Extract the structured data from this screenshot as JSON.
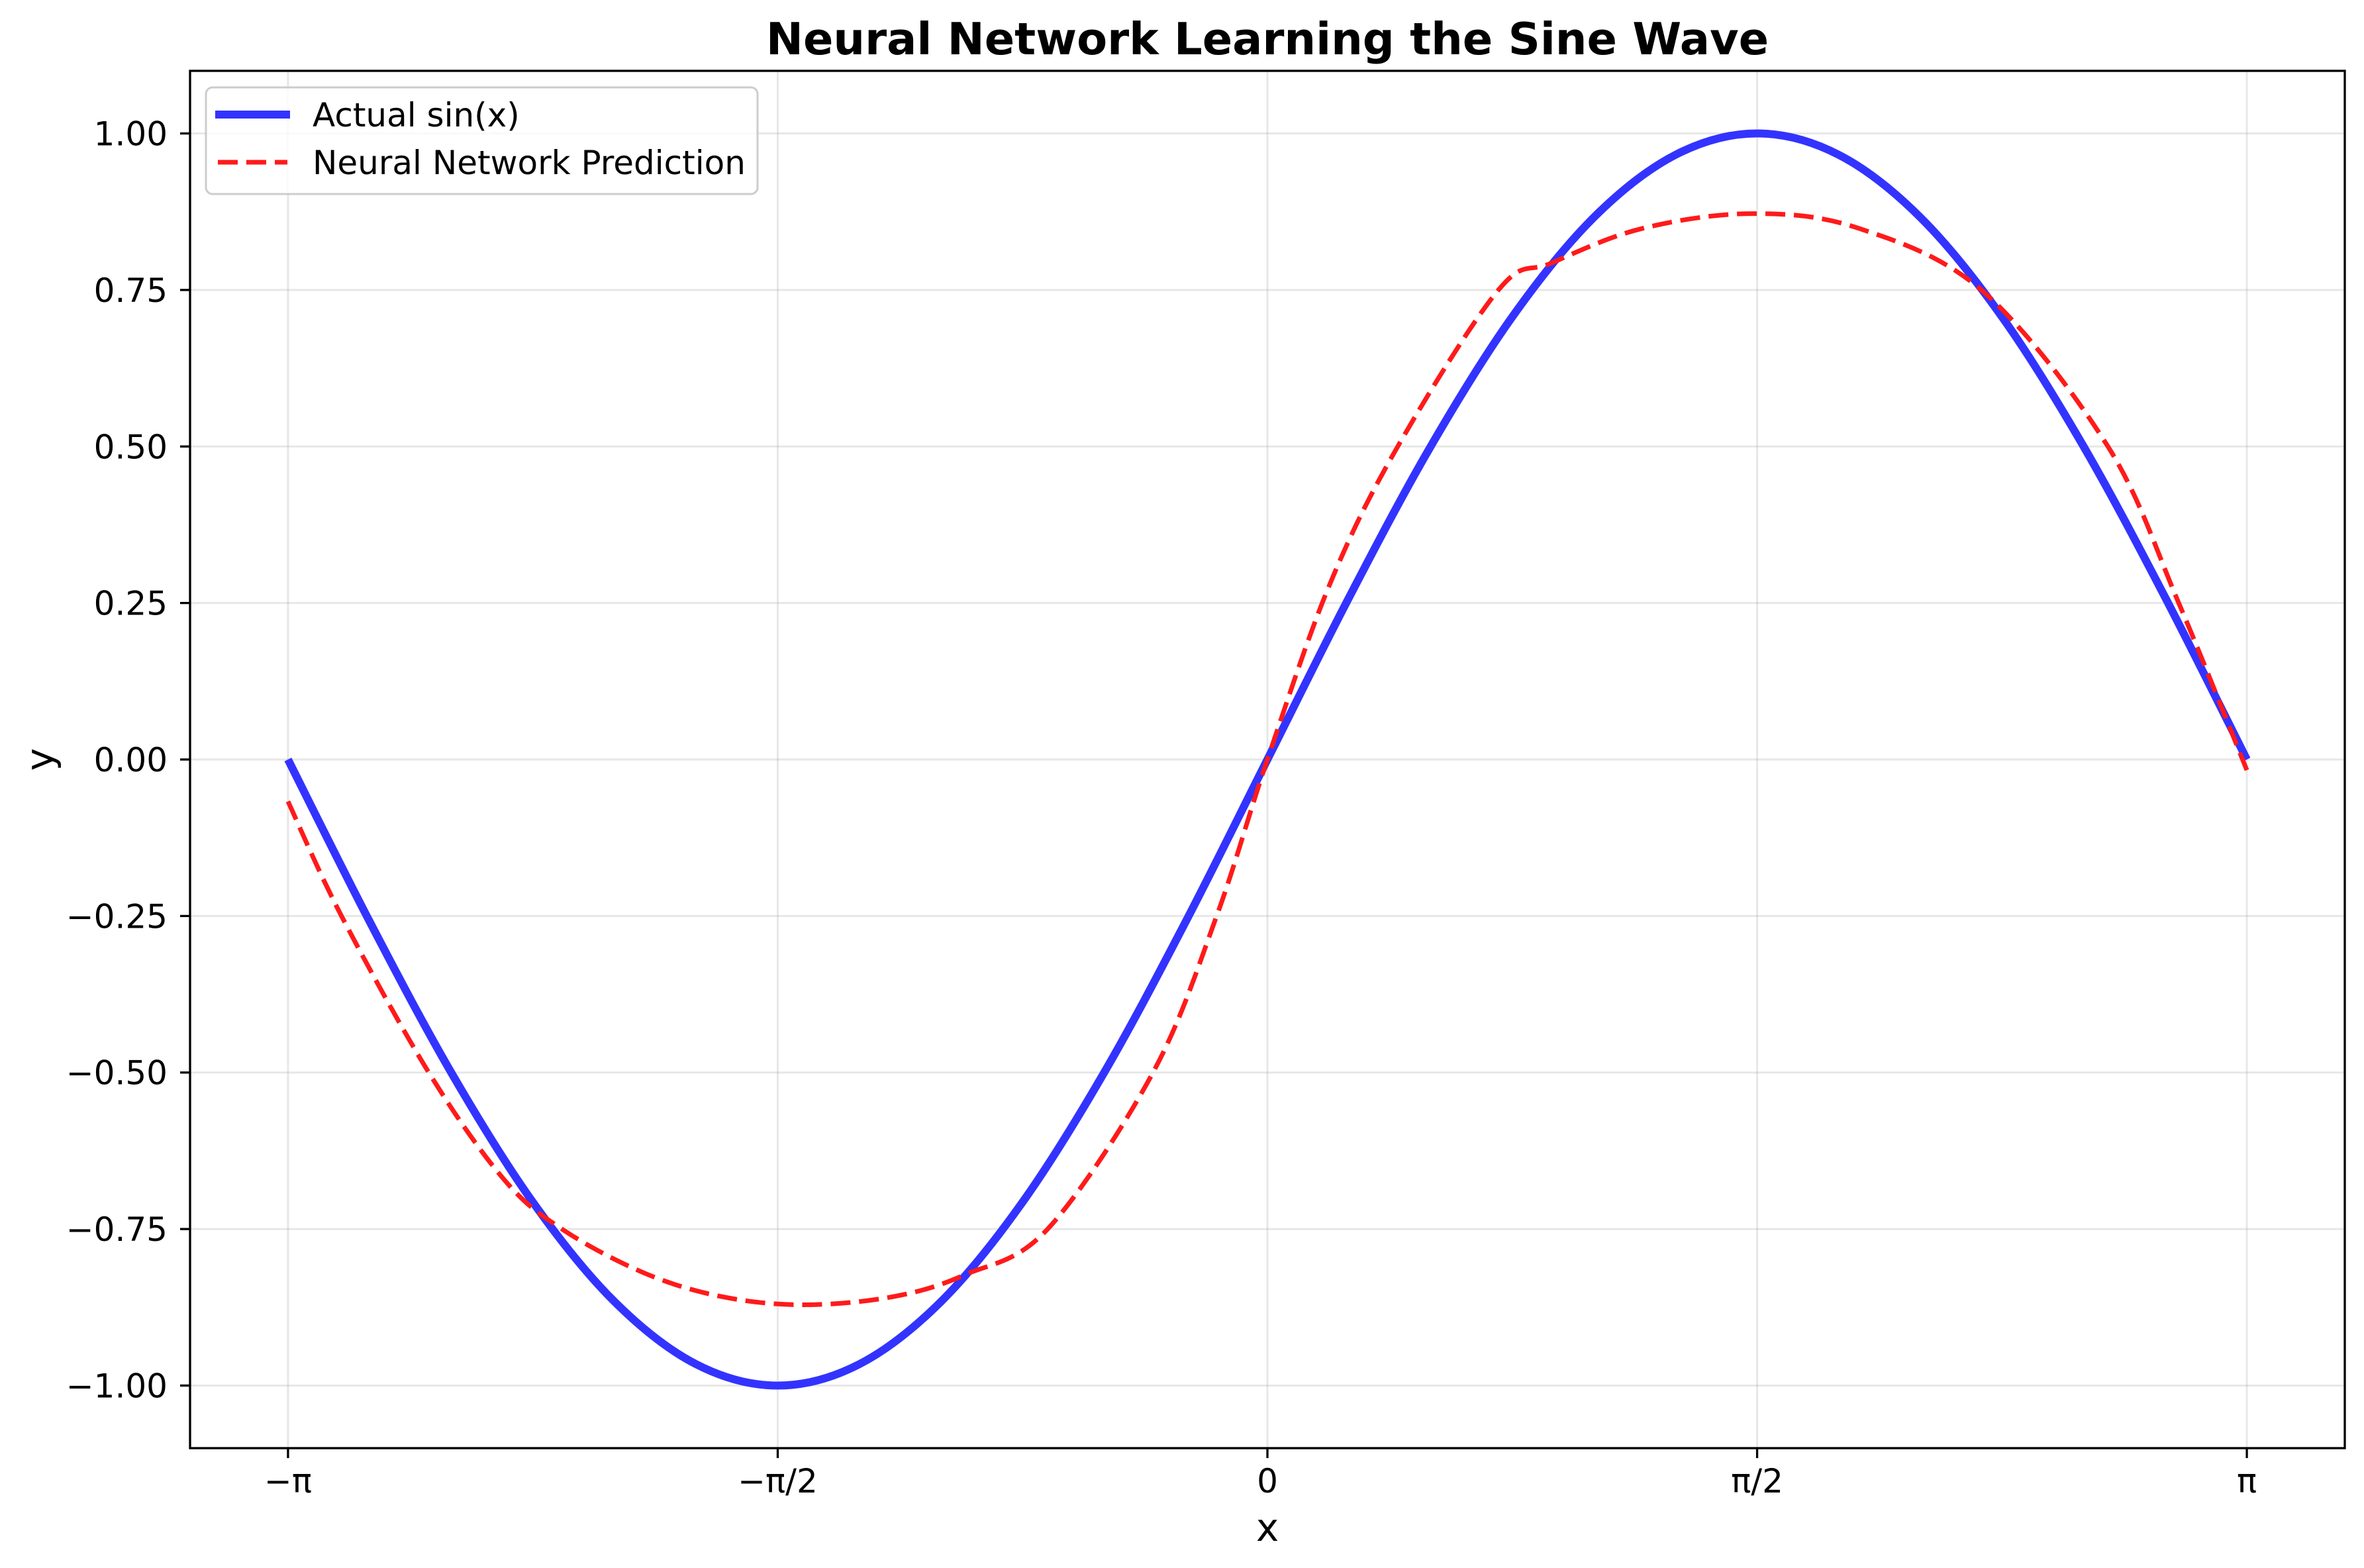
{
  "chart_data": {
    "type": "line",
    "title": "Neural Network Learning the Sine Wave",
    "xlabel": "x",
    "ylabel": "y",
    "xlim": [
      -3.4558,
      3.4558
    ],
    "ylim": [
      -1.1,
      1.1
    ],
    "grid": true,
    "legend_position": "upper left",
    "x_ticks": [
      {
        "value": -3.14159,
        "label": "−π"
      },
      {
        "value": -1.5708,
        "label": "−π/2"
      },
      {
        "value": 0,
        "label": "0"
      },
      {
        "value": 1.5708,
        "label": "π/2"
      },
      {
        "value": 3.14159,
        "label": "π"
      }
    ],
    "y_ticks": [
      {
        "value": 1.0,
        "label": "1.00"
      },
      {
        "value": 0.75,
        "label": "0.75"
      },
      {
        "value": 0.5,
        "label": "0.50"
      },
      {
        "value": 0.25,
        "label": "0.25"
      },
      {
        "value": 0.0,
        "label": "0.00"
      },
      {
        "value": -0.25,
        "label": "−0.25"
      },
      {
        "value": -0.5,
        "label": "−0.50"
      },
      {
        "value": -0.75,
        "label": "−0.75"
      },
      {
        "value": -1.0,
        "label": "−1.00"
      }
    ],
    "series": [
      {
        "name": "Actual sin(x)",
        "color": "#3333ff",
        "style": "solid",
        "x": [
          -3.1416,
          -2.8798,
          -2.618,
          -2.3562,
          -2.0944,
          -1.8326,
          -1.5708,
          -1.309,
          -1.0472,
          -0.7854,
          -0.5236,
          -0.2618,
          0.0,
          0.2618,
          0.5236,
          0.7854,
          1.0472,
          1.309,
          1.5708,
          1.8326,
          2.0944,
          2.3562,
          2.618,
          2.8798,
          3.1416
        ],
        "y": [
          0.0,
          -0.2588,
          -0.5,
          -0.7071,
          -0.866,
          -0.9659,
          -1.0,
          -0.9659,
          -0.866,
          -0.7071,
          -0.5,
          -0.2588,
          0.0,
          0.2588,
          0.5,
          0.7071,
          0.866,
          0.9659,
          1.0,
          0.9659,
          0.866,
          0.7071,
          0.5,
          0.2588,
          0.0
        ]
      },
      {
        "name": "Neural Network Prediction",
        "color": "#ff1a1a",
        "style": "dashed",
        "x": [
          -3.1416,
          -2.97,
          -2.69,
          -2.45,
          -2.263,
          -2.0,
          -1.75,
          -1.488,
          -1.2,
          -0.97,
          -0.705,
          -0.367,
          -0.163,
          0.0,
          0.2,
          0.418,
          0.741,
          0.911,
          1.2,
          1.556,
          1.9,
          2.297,
          2.696,
          2.923,
          3.1416
        ],
        "y": [
          -0.067,
          -0.25,
          -0.5,
          -0.67,
          -0.75,
          -0.82,
          -0.858,
          -0.871,
          -0.858,
          -0.823,
          -0.75,
          -0.5,
          -0.25,
          0.0,
          0.28,
          0.5,
          0.75,
          0.793,
          0.848,
          0.872,
          0.848,
          0.747,
          0.5,
          0.25,
          -0.017
        ]
      }
    ]
  },
  "legend": {
    "items": [
      {
        "label": "Actual sin(x)",
        "color": "#3333ff",
        "style": "solid"
      },
      {
        "label": "Neural Network Prediction",
        "color": "#ff1a1a",
        "style": "dashed"
      }
    ]
  }
}
